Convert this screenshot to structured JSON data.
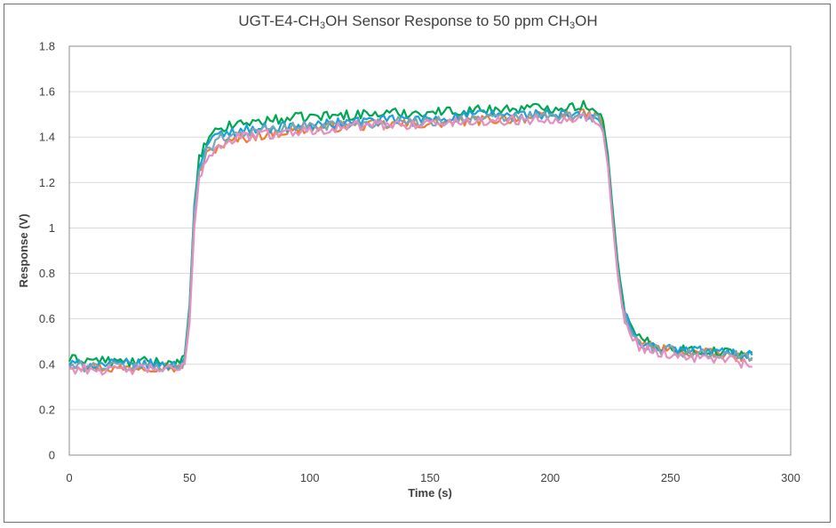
{
  "chart_data": {
    "type": "line",
    "title": {
      "parts": [
        "UGT-E4-CH",
        "3",
        "OH  Sensor Response to 50 ppm CH",
        "3",
        "OH"
      ]
    },
    "xlabel": "Time (s)",
    "ylabel": "Response (V)",
    "xlim": [
      0,
      300
    ],
    "ylim": [
      0,
      1.8
    ],
    "xticks": [
      "0",
      "50",
      "100",
      "150",
      "200",
      "250",
      "300"
    ],
    "yticks": [
      "0",
      "0.2",
      "0.4",
      "0.6",
      "0.8",
      "1",
      "1.2",
      "1.4",
      "1.6",
      "1.8"
    ],
    "grid": "horizontal",
    "legend": "none",
    "series": [
      {
        "color": "#ed7d31",
        "points": [
          [
            0,
            0.4
          ],
          [
            10,
            0.39
          ],
          [
            20,
            0.38
          ],
          [
            30,
            0.39
          ],
          [
            40,
            0.39
          ],
          [
            46,
            0.38
          ],
          [
            48,
            0.42
          ],
          [
            50,
            0.62
          ],
          [
            52,
            1.05
          ],
          [
            54,
            1.24
          ],
          [
            57,
            1.32
          ],
          [
            62,
            1.36
          ],
          [
            70,
            1.39
          ],
          [
            80,
            1.41
          ],
          [
            100,
            1.44
          ],
          [
            120,
            1.45
          ],
          [
            150,
            1.46
          ],
          [
            180,
            1.48
          ],
          [
            200,
            1.49
          ],
          [
            215,
            1.5
          ],
          [
            220,
            1.49
          ],
          [
            222,
            1.44
          ],
          [
            224,
            1.3
          ],
          [
            226,
            1.05
          ],
          [
            228,
            0.82
          ],
          [
            230,
            0.66
          ],
          [
            233,
            0.55
          ],
          [
            237,
            0.5
          ],
          [
            245,
            0.47
          ],
          [
            260,
            0.45
          ],
          [
            275,
            0.44
          ],
          [
            284,
            0.42
          ]
        ]
      },
      {
        "color": "#00a651",
        "points": [
          [
            0,
            0.42
          ],
          [
            10,
            0.42
          ],
          [
            20,
            0.41
          ],
          [
            30,
            0.41
          ],
          [
            40,
            0.41
          ],
          [
            46,
            0.4
          ],
          [
            48,
            0.44
          ],
          [
            50,
            0.66
          ],
          [
            52,
            1.1
          ],
          [
            54,
            1.3
          ],
          [
            57,
            1.38
          ],
          [
            62,
            1.43
          ],
          [
            70,
            1.46
          ],
          [
            80,
            1.47
          ],
          [
            100,
            1.49
          ],
          [
            120,
            1.5
          ],
          [
            150,
            1.51
          ],
          [
            170,
            1.52
          ],
          [
            200,
            1.53
          ],
          [
            215,
            1.54
          ],
          [
            220,
            1.52
          ],
          [
            222,
            1.47
          ],
          [
            224,
            1.32
          ],
          [
            226,
            1.08
          ],
          [
            228,
            0.86
          ],
          [
            230,
            0.69
          ],
          [
            233,
            0.57
          ],
          [
            237,
            0.51
          ],
          [
            245,
            0.48
          ],
          [
            260,
            0.46
          ],
          [
            275,
            0.45
          ],
          [
            284,
            0.45
          ]
        ]
      },
      {
        "color": "#1ca0dc",
        "points": [
          [
            0,
            0.4
          ],
          [
            10,
            0.4
          ],
          [
            20,
            0.4
          ],
          [
            30,
            0.4
          ],
          [
            40,
            0.4
          ],
          [
            46,
            0.39
          ],
          [
            48,
            0.43
          ],
          [
            50,
            0.64
          ],
          [
            52,
            1.08
          ],
          [
            54,
            1.28
          ],
          [
            57,
            1.36
          ],
          [
            62,
            1.41
          ],
          [
            70,
            1.43
          ],
          [
            80,
            1.44
          ],
          [
            100,
            1.45
          ],
          [
            120,
            1.47
          ],
          [
            150,
            1.48
          ],
          [
            170,
            1.5
          ],
          [
            200,
            1.5
          ],
          [
            215,
            1.49
          ],
          [
            220,
            1.48
          ],
          [
            222,
            1.43
          ],
          [
            224,
            1.29
          ],
          [
            226,
            1.04
          ],
          [
            228,
            0.83
          ],
          [
            230,
            0.67
          ],
          [
            233,
            0.56
          ],
          [
            237,
            0.5
          ],
          [
            245,
            0.47
          ],
          [
            260,
            0.46
          ],
          [
            275,
            0.45
          ],
          [
            284,
            0.44
          ]
        ]
      },
      {
        "color": "#7aa6b5",
        "points": [
          [
            0,
            0.39
          ],
          [
            10,
            0.39
          ],
          [
            20,
            0.39
          ],
          [
            30,
            0.39
          ],
          [
            40,
            0.39
          ],
          [
            46,
            0.38
          ],
          [
            48,
            0.42
          ],
          [
            50,
            0.63
          ],
          [
            52,
            1.06
          ],
          [
            54,
            1.26
          ],
          [
            57,
            1.34
          ],
          [
            62,
            1.39
          ],
          [
            70,
            1.42
          ],
          [
            80,
            1.43
          ],
          [
            100,
            1.45
          ],
          [
            120,
            1.46
          ],
          [
            150,
            1.47
          ],
          [
            170,
            1.48
          ],
          [
            200,
            1.49
          ],
          [
            215,
            1.49
          ],
          [
            220,
            1.48
          ],
          [
            222,
            1.43
          ],
          [
            224,
            1.28
          ],
          [
            226,
            1.03
          ],
          [
            228,
            0.82
          ],
          [
            230,
            0.66
          ],
          [
            233,
            0.55
          ],
          [
            237,
            0.49
          ],
          [
            245,
            0.46
          ],
          [
            260,
            0.45
          ],
          [
            275,
            0.44
          ],
          [
            284,
            0.43
          ]
        ]
      },
      {
        "color": "#e58fc0",
        "points": [
          [
            0,
            0.38
          ],
          [
            10,
            0.38
          ],
          [
            20,
            0.37
          ],
          [
            30,
            0.38
          ],
          [
            40,
            0.38
          ],
          [
            46,
            0.37
          ],
          [
            48,
            0.4
          ],
          [
            50,
            0.58
          ],
          [
            52,
            1.0
          ],
          [
            54,
            1.22
          ],
          [
            57,
            1.31
          ],
          [
            62,
            1.36
          ],
          [
            70,
            1.4
          ],
          [
            80,
            1.41
          ],
          [
            100,
            1.43
          ],
          [
            120,
            1.45
          ],
          [
            150,
            1.46
          ],
          [
            170,
            1.47
          ],
          [
            200,
            1.48
          ],
          [
            215,
            1.49
          ],
          [
            220,
            1.47
          ],
          [
            222,
            1.42
          ],
          [
            224,
            1.27
          ],
          [
            226,
            1.02
          ],
          [
            228,
            0.8
          ],
          [
            230,
            0.64
          ],
          [
            233,
            0.53
          ],
          [
            237,
            0.48
          ],
          [
            245,
            0.45
          ],
          [
            260,
            0.43
          ],
          [
            275,
            0.42
          ],
          [
            284,
            0.39
          ]
        ]
      }
    ]
  }
}
